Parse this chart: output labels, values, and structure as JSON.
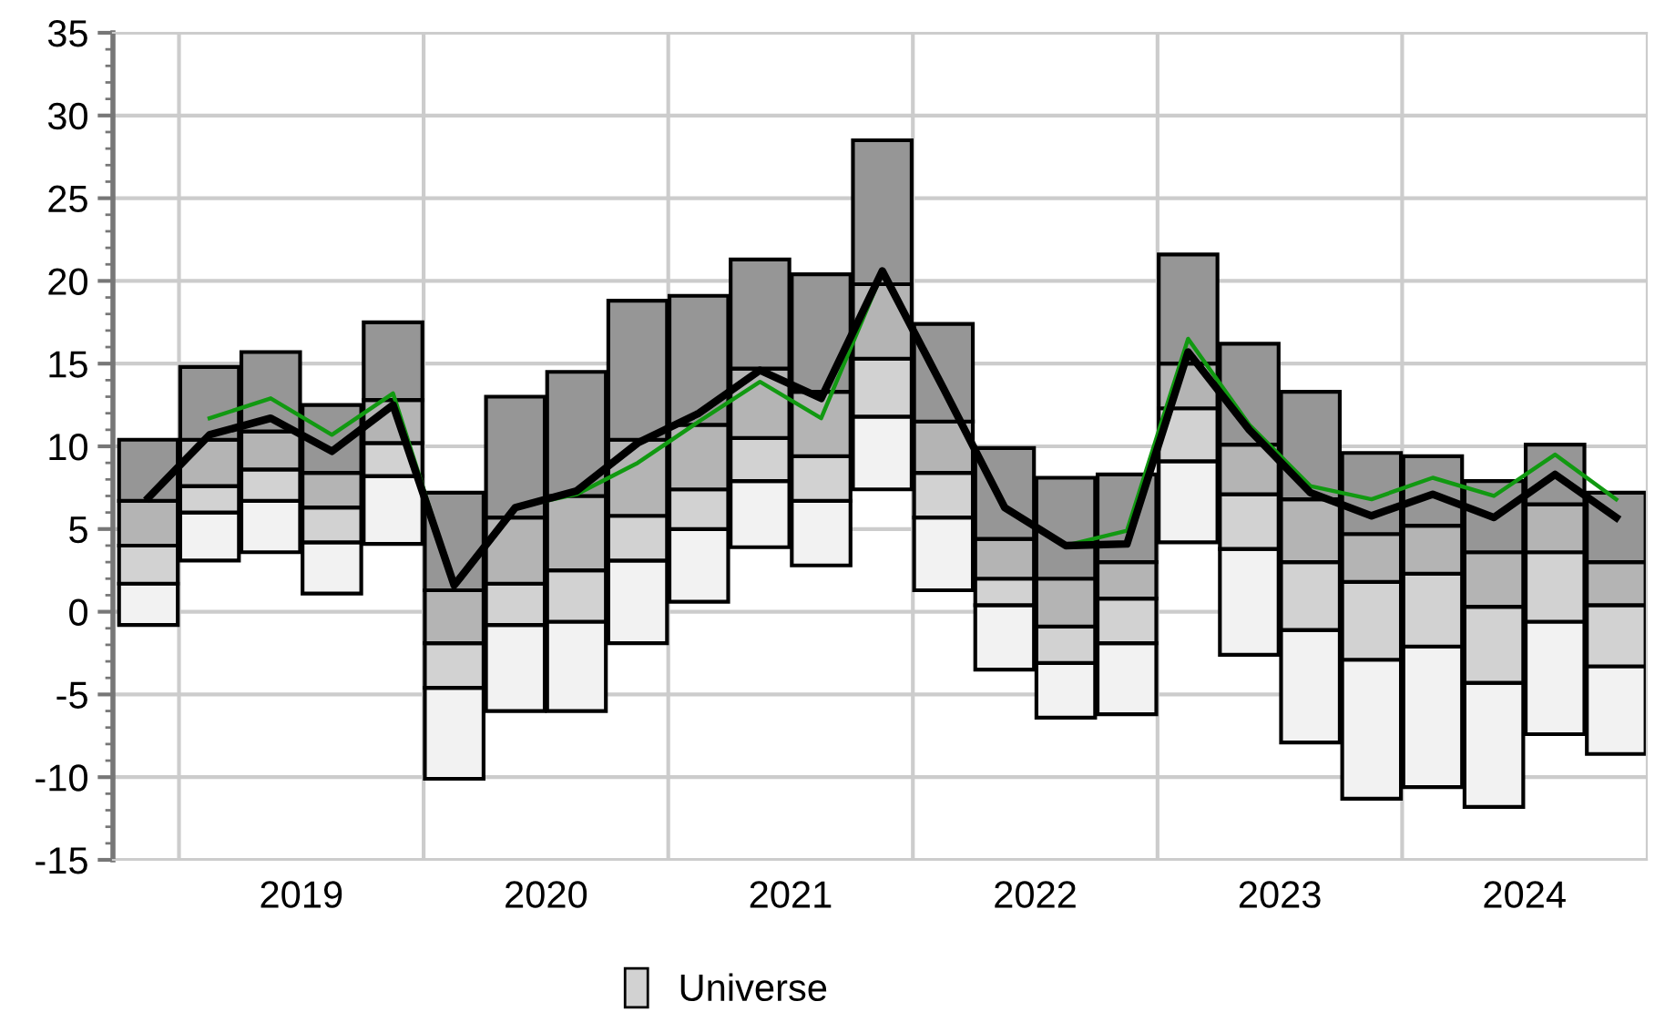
{
  "chart_data": {
    "type": "bar",
    "x": [
      2018.875,
      2019.125,
      2019.375,
      2019.625,
      2019.875,
      2020.125,
      2020.375,
      2020.625,
      2020.875,
      2021.125,
      2021.375,
      2021.625,
      2021.875,
      2022.125,
      2022.375,
      2022.625,
      2022.875,
      2023.125,
      2023.375,
      2023.625,
      2023.875,
      2024.125,
      2024.375,
      2024.625,
      2024.875
    ],
    "xlim": [
      2018.73,
      2025.0
    ],
    "xticks": [
      {
        "value": 2019,
        "label": null
      },
      {
        "value": 2019.5,
        "label": "2019"
      },
      {
        "value": 2020,
        "label": null
      },
      {
        "value": 2020.5,
        "label": "2020"
      },
      {
        "value": 2021,
        "label": null
      },
      {
        "value": 2021.5,
        "label": "2021"
      },
      {
        "value": 2022,
        "label": null
      },
      {
        "value": 2022.5,
        "label": "2022"
      },
      {
        "value": 2023,
        "label": null
      },
      {
        "value": 2023.5,
        "label": "2023"
      },
      {
        "value": 2024,
        "label": null
      },
      {
        "value": 2024.5,
        "label": "2024"
      }
    ],
    "ylim": [
      -15,
      35
    ],
    "yticks": [
      -15,
      -10,
      -5,
      0,
      5,
      10,
      15,
      20,
      25,
      30,
      35
    ],
    "grid": true,
    "legend": "bottom",
    "series": [
      {
        "color": "#f2f2f2",
        "base": [
          -0.8,
          3.1,
          3.6,
          1.1,
          4.1,
          -10.1,
          -6.0,
          -6.0,
          -1.9,
          0.6,
          3.9,
          2.8,
          7.4,
          1.3,
          -3.5,
          -6.4,
          -6.2,
          4.2,
          -2.6,
          -7.9,
          -11.3,
          -10.6,
          -11.8,
          -7.4,
          -8.6
        ],
        "values": [
          2.5,
          2.9,
          3.1,
          3.1,
          4.1,
          5.5,
          5.2,
          5.4,
          5.0,
          4.4,
          4.0,
          3.9,
          4.4,
          4.4,
          3.9,
          3.3,
          4.3,
          4.9,
          6.4,
          6.8,
          8.4,
          8.5,
          7.5,
          6.8,
          5.3
        ]
      },
      {
        "name": "Universe",
        "color": "#d2d2d2",
        "base": [
          1.7,
          6.0,
          6.7,
          4.2,
          8.2,
          -4.6,
          -0.8,
          -0.6,
          3.1,
          5.0,
          7.9,
          6.7,
          11.8,
          5.7,
          0.4,
          -3.1,
          -1.9,
          9.1,
          3.8,
          -1.1,
          -2.9,
          -2.1,
          -4.3,
          -0.6,
          -3.3
        ],
        "values": [
          2.3,
          1.6,
          1.9,
          2.1,
          2.0,
          2.7,
          2.5,
          3.1,
          2.7,
          2.4,
          2.6,
          2.7,
          3.5,
          2.7,
          1.6,
          2.2,
          2.7,
          3.2,
          3.3,
          4.1,
          4.7,
          4.4,
          4.6,
          4.2,
          3.7
        ]
      },
      {
        "color": "#b4b4b4",
        "base": [
          4.0,
          7.6,
          8.6,
          6.3,
          10.2,
          -1.9,
          1.7,
          2.5,
          5.8,
          7.4,
          10.5,
          9.4,
          15.3,
          8.4,
          2.0,
          -0.9,
          0.8,
          12.3,
          7.1,
          3.0,
          1.8,
          2.3,
          0.3,
          3.6,
          0.4
        ],
        "values": [
          2.7,
          2.8,
          2.3,
          2.1,
          2.6,
          3.2,
          4.0,
          4.5,
          4.6,
          3.9,
          4.2,
          3.9,
          4.5,
          3.1,
          2.4,
          2.9,
          2.2,
          2.7,
          3.0,
          3.8,
          2.9,
          2.9,
          3.3,
          2.9,
          2.6
        ]
      },
      {
        "color": "#969696",
        "base": [
          6.7,
          10.4,
          10.9,
          8.4,
          12.8,
          1.3,
          5.7,
          7.0,
          10.4,
          11.3,
          14.7,
          13.3,
          19.8,
          11.5,
          4.4,
          2.0,
          3.0,
          15.0,
          10.1,
          6.8,
          4.7,
          5.2,
          3.6,
          6.5,
          3.0
        ],
        "values": [
          3.7,
          4.4,
          4.8,
          4.1,
          4.7,
          5.9,
          7.3,
          7.5,
          8.4,
          7.8,
          6.6,
          7.1,
          8.7,
          5.9,
          5.5,
          6.1,
          5.3,
          6.6,
          6.1,
          6.5,
          4.9,
          4.2,
          4.3,
          3.6,
          4.2
        ]
      },
      {
        "type": "line",
        "color": "#119911",
        "values": [
          null,
          11.7,
          12.9,
          10.7,
          13.2,
          1.6,
          6.3,
          7.1,
          9.0,
          11.5,
          13.9,
          11.7,
          20.5,
          13.5,
          6.3,
          4.0,
          4.9,
          16.5,
          11.3,
          7.6,
          6.8,
          8.1,
          7.0,
          9.5,
          6.8
        ]
      },
      {
        "type": "line",
        "color": "#000000",
        "values": [
          6.9,
          10.7,
          11.7,
          9.7,
          12.5,
          1.6,
          6.3,
          7.3,
          10.2,
          12.0,
          14.6,
          12.9,
          20.6,
          13.5,
          6.3,
          4.0,
          4.1,
          15.7,
          11.0,
          7.2,
          5.8,
          7.1,
          5.7,
          8.3,
          5.7
        ]
      }
    ]
  }
}
